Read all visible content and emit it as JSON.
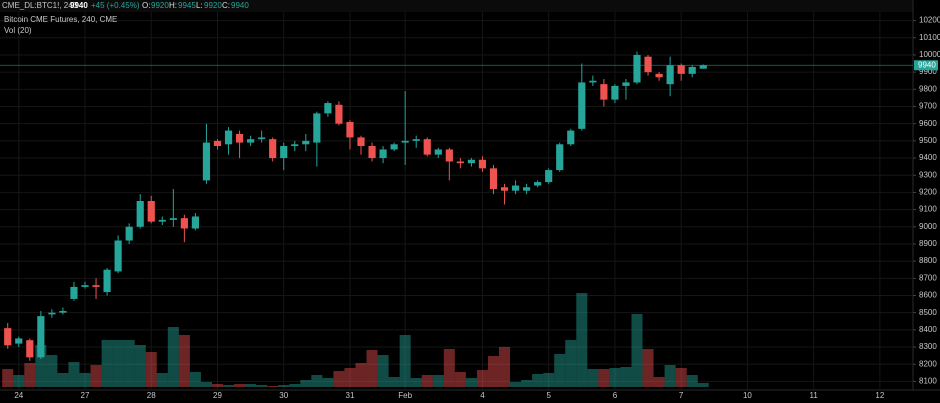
{
  "chart_data": {
    "type": "candlestick",
    "header": {
      "symbol": "CME_DL:BTC1!, 240",
      "last": 9940,
      "change": "+45 (+0.45%)",
      "open_label": "O:",
      "open": 9920,
      "high_label": "H:",
      "high": 9945,
      "low_label": "L:",
      "low": 9920,
      "close_label": "C:",
      "close": 9940
    },
    "title": "Bitcoin CME Futures, 240, CME",
    "volume_label": "Vol (20)",
    "up_color": "#26a69a",
    "down_color": "#ef5350",
    "open": [
      8410,
      8320,
      8340,
      8240,
      8490,
      8500,
      8580,
      8650,
      8660,
      8620,
      8740,
      8920,
      9000,
      9150,
      9030,
      9040,
      9050,
      8990,
      9270,
      9500,
      9480,
      9540,
      9490,
      9510,
      9510,
      9400,
      9470,
      9480,
      9490,
      9660,
      9710,
      9610,
      9520,
      9470,
      9400,
      9450,
      9490,
      9500,
      9510,
      9420,
      9450,
      9380,
      9370,
      9390,
      9340,
      9230,
      9210,
      9210,
      9240,
      9260,
      9330,
      9480,
      9570,
      9840,
      9830,
      9740,
      9820,
      9840,
      9990,
      9890,
      9830,
      9940,
      9890,
      9920
    ],
    "high": [
      8440,
      8360,
      8350,
      8510,
      8520,
      8530,
      8680,
      8680,
      8700,
      8760,
      8950,
      9020,
      9190,
      9180,
      9060,
      9220,
      9070,
      9080,
      9600,
      9510,
      9580,
      9560,
      9530,
      9560,
      9520,
      9490,
      9500,
      9540,
      9670,
      9730,
      9730,
      9620,
      9530,
      9490,
      9470,
      9490,
      9790,
      9530,
      9520,
      9460,
      9460,
      9400,
      9400,
      9410,
      9360,
      9250,
      9270,
      9250,
      9270,
      9340,
      9490,
      9570,
      9950,
      9880,
      9860,
      9830,
      9860,
      10020,
      10000,
      9900,
      9990,
      9950,
      9940,
      9945
    ],
    "low": [
      8290,
      8300,
      8220,
      8230,
      8470,
      8490,
      8570,
      8640,
      8580,
      8600,
      8730,
      8900,
      8990,
      9020,
      9010,
      9000,
      8910,
      8980,
      9250,
      9450,
      9420,
      9400,
      9470,
      9490,
      9380,
      9330,
      9440,
      9440,
      9350,
      9640,
      9590,
      9450,
      9420,
      9380,
      9370,
      9440,
      9360,
      9460,
      9410,
      9400,
      9270,
      9340,
      9350,
      9320,
      9190,
      9130,
      9190,
      9190,
      9230,
      9250,
      9320,
      9470,
      9560,
      9820,
      9700,
      9720,
      9740,
      9830,
      9880,
      9850,
      9760,
      9850,
      9870,
      9920
    ],
    "close": [
      8310,
      8350,
      8240,
      8480,
      8500,
      8510,
      8650,
      8660,
      8650,
      8750,
      8920,
      9000,
      9150,
      9030,
      9040,
      9050,
      8990,
      9060,
      9490,
      9470,
      9560,
      9490,
      9510,
      9520,
      9400,
      9470,
      9480,
      9500,
      9660,
      9720,
      9600,
      9520,
      9470,
      9400,
      9450,
      9480,
      9500,
      9510,
      9420,
      9450,
      9380,
      9370,
      9390,
      9340,
      9220,
      9210,
      9240,
      9230,
      9260,
      9330,
      9480,
      9560,
      9840,
      9850,
      9740,
      9820,
      9840,
      10000,
      9900,
      9870,
      9940,
      9890,
      9930,
      9940
    ],
    "volume": [
      18,
      12,
      24,
      42,
      32,
      14,
      25,
      14,
      22,
      47,
      47,
      47,
      42,
      35,
      14,
      60,
      52,
      15,
      5,
      3,
      2,
      3,
      3,
      2,
      1,
      2,
      3,
      7,
      12,
      9,
      16,
      19,
      24,
      37,
      32,
      10,
      52,
      9,
      12,
      12,
      38,
      15,
      9,
      17,
      31,
      40,
      5,
      7,
      13,
      14,
      33,
      47,
      94,
      18,
      18,
      19,
      20,
      73,
      38,
      10,
      22,
      19,
      12,
      4
    ],
    "ylim": [
      8050,
      10250
    ],
    "yticks": [
      8100,
      8200,
      8300,
      8400,
      8500,
      8600,
      8700,
      8800,
      8900,
      9000,
      9100,
      9200,
      9300,
      9400,
      9500,
      9600,
      9700,
      9800,
      9900,
      10000,
      10100,
      10200
    ],
    "xlim": [
      -0.7,
      82
    ],
    "xticks": [
      {
        "value": 1,
        "label": "24"
      },
      {
        "value": 7,
        "label": "27"
      },
      {
        "value": 13,
        "label": "28"
      },
      {
        "value": 19,
        "label": "29"
      },
      {
        "value": 25,
        "label": "30"
      },
      {
        "value": 31,
        "label": "31"
      },
      {
        "value": 36,
        "label": "Feb"
      },
      {
        "value": 43,
        "label": "4"
      },
      {
        "value": 49,
        "label": "5"
      },
      {
        "value": 55,
        "label": "6"
      },
      {
        "value": 61,
        "label": "7"
      },
      {
        "value": 67,
        "label": "10"
      },
      {
        "value": 73,
        "label": "11"
      },
      {
        "value": 79,
        "label": "12"
      }
    ],
    "grid": true
  }
}
